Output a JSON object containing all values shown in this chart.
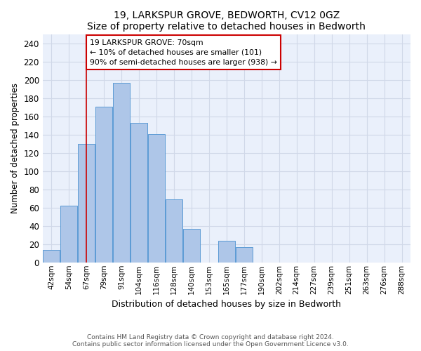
{
  "title": "19, LARKSPUR GROVE, BEDWORTH, CV12 0GZ",
  "subtitle": "Size of property relative to detached houses in Bedworth",
  "xlabel": "Distribution of detached houses by size in Bedworth",
  "ylabel": "Number of detached properties",
  "bar_labels": [
    "42sqm",
    "54sqm",
    "67sqm",
    "79sqm",
    "91sqm",
    "104sqm",
    "116sqm",
    "128sqm",
    "140sqm",
    "153sqm",
    "165sqm",
    "177sqm",
    "190sqm",
    "202sqm",
    "214sqm",
    "227sqm",
    "239sqm",
    "251sqm",
    "263sqm",
    "276sqm",
    "288sqm"
  ],
  "bar_values": [
    14,
    62,
    130,
    171,
    197,
    153,
    141,
    69,
    37,
    0,
    24,
    17,
    0,
    0,
    0,
    0,
    0,
    0,
    0,
    0,
    0
  ],
  "bar_color": "#aec6e8",
  "bar_edge_color": "#5b9bd5",
  "annotation_text": "19 LARKSPUR GROVE: 70sqm\n← 10% of detached houses are smaller (101)\n90% of semi-detached houses are larger (938) →",
  "annotation_box_color": "#ffffff",
  "annotation_box_edge": "#cc0000",
  "vline_color": "#cc0000",
  "vline_label": "67sqm",
  "ylim": [
    0,
    250
  ],
  "yticks": [
    0,
    20,
    40,
    60,
    80,
    100,
    120,
    140,
    160,
    180,
    200,
    220,
    240
  ],
  "grid_color": "#d0d8e8",
  "bg_color": "#eaf0fb",
  "footer1": "Contains HM Land Registry data © Crown copyright and database right 2024.",
  "footer2": "Contains public sector information licensed under the Open Government Licence v3.0."
}
